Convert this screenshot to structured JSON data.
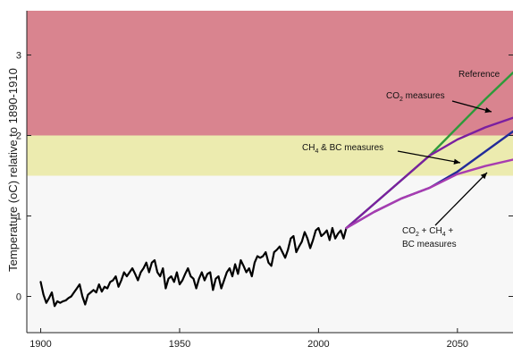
{
  "chart_data": {
    "type": "line",
    "title": "",
    "xlabel": "",
    "ylabel": "Temperature (oC) relative to 1890-1910",
    "xlim": [
      1895,
      2070
    ],
    "ylim": [
      -0.45,
      3.55
    ],
    "xticks": [
      1900,
      1950,
      2000,
      2050
    ],
    "yticks": [
      0,
      1,
      2,
      3
    ],
    "grid": false,
    "bands": [
      {
        "y0": 2.0,
        "y1": 3.55,
        "color": "#d9848f"
      },
      {
        "y0": 1.5,
        "y1": 2.0,
        "color": "#ecebaf"
      },
      {
        "y0": -0.45,
        "y1": 1.5,
        "color": "#f7f7f7"
      }
    ],
    "series": [
      {
        "color": "#000000",
        "x": [
          1900,
          1901,
          1902,
          1903,
          1904,
          1905,
          1906,
          1907,
          1908,
          1909,
          1910,
          1911,
          1912,
          1913,
          1914,
          1915,
          1916,
          1917,
          1918,
          1919,
          1920,
          1921,
          1922,
          1923,
          1924,
          1925,
          1926,
          1927,
          1928,
          1929,
          1930,
          1931,
          1932,
          1933,
          1934,
          1935,
          1936,
          1937,
          1938,
          1939,
          1940,
          1941,
          1942,
          1943,
          1944,
          1945,
          1946,
          1947,
          1948,
          1949,
          1950,
          1951,
          1952,
          1953,
          1954,
          1955,
          1956,
          1957,
          1958,
          1959,
          1960,
          1961,
          1962,
          1963,
          1964,
          1965,
          1966,
          1967,
          1968,
          1969,
          1970,
          1971,
          1972,
          1973,
          1974,
          1975,
          1976,
          1977,
          1978,
          1979,
          1980,
          1981,
          1982,
          1983,
          1984,
          1985,
          1986,
          1987,
          1988,
          1989,
          1990,
          1991,
          1992,
          1993,
          1994,
          1995,
          1996,
          1997,
          1998,
          1999,
          2000,
          2001,
          2002,
          2003,
          2004,
          2005,
          2006,
          2007,
          2008,
          2009,
          2010
        ],
        "values": [
          0.18,
          0.02,
          -0.08,
          -0.02,
          0.05,
          -0.12,
          -0.06,
          -0.08,
          -0.06,
          -0.05,
          -0.02,
          0.0,
          0.05,
          0.1,
          0.15,
          0.0,
          -0.1,
          0.02,
          0.05,
          0.08,
          0.05,
          0.15,
          0.06,
          0.12,
          0.1,
          0.18,
          0.2,
          0.25,
          0.12,
          0.2,
          0.3,
          0.25,
          0.3,
          0.35,
          0.28,
          0.2,
          0.3,
          0.35,
          0.42,
          0.3,
          0.42,
          0.45,
          0.3,
          0.25,
          0.35,
          0.1,
          0.22,
          0.25,
          0.18,
          0.3,
          0.15,
          0.2,
          0.28,
          0.35,
          0.25,
          0.22,
          0.1,
          0.22,
          0.3,
          0.2,
          0.28,
          0.3,
          0.08,
          0.22,
          0.25,
          0.1,
          0.2,
          0.3,
          0.35,
          0.25,
          0.4,
          0.28,
          0.45,
          0.38,
          0.3,
          0.35,
          0.25,
          0.42,
          0.5,
          0.48,
          0.5,
          0.55,
          0.42,
          0.38,
          0.55,
          0.58,
          0.62,
          0.55,
          0.48,
          0.58,
          0.72,
          0.75,
          0.55,
          0.62,
          0.68,
          0.8,
          0.72,
          0.6,
          0.7,
          0.82,
          0.85,
          0.75,
          0.78,
          0.82,
          0.7,
          0.85,
          0.72,
          0.78,
          0.82,
          0.72,
          0.85
        ]
      },
      {
        "name": "Reference",
        "color": "#2e9a3a",
        "x": [
          2010,
          2020,
          2030,
          2040,
          2050,
          2060,
          2070
        ],
        "values": [
          0.85,
          1.15,
          1.45,
          1.75,
          2.1,
          2.45,
          2.78
        ]
      },
      {
        "name": "CO2 measures",
        "color": "#7a1fa0",
        "x": [
          2010,
          2020,
          2030,
          2040,
          2050,
          2060,
          2070
        ],
        "values": [
          0.85,
          1.15,
          1.45,
          1.75,
          1.95,
          2.1,
          2.22
        ]
      },
      {
        "name": "CH4 & BC measures",
        "color": "#232b99",
        "x": [
          2010,
          2020,
          2030,
          2040,
          2050,
          2060,
          2070
        ],
        "values": [
          0.85,
          1.05,
          1.22,
          1.35,
          1.55,
          1.8,
          2.05
        ]
      },
      {
        "name": "CO2 + CH4 + BC measures",
        "color": "#a83cb0",
        "x": [
          2010,
          2020,
          2030,
          2040,
          2050,
          2060,
          2070
        ],
        "values": [
          0.85,
          1.05,
          1.22,
          1.35,
          1.52,
          1.62,
          1.7
        ]
      }
    ],
    "annotations": [
      {
        "id": "ref",
        "base": "Reference",
        "sub": "",
        "rest": ""
      },
      {
        "id": "co2",
        "base": "CO",
        "sub": "2",
        "rest": " measures"
      },
      {
        "id": "ch4bc",
        "base": "CH",
        "sub": "4",
        "rest": " & BC measures"
      },
      {
        "id": "combo1",
        "base": "CO",
        "sub": "2",
        "rest": " + CH",
        "sub2": "4",
        "rest2": " +"
      },
      {
        "id": "combo2",
        "base": "BC measures",
        "sub": "",
        "rest": ""
      }
    ]
  }
}
